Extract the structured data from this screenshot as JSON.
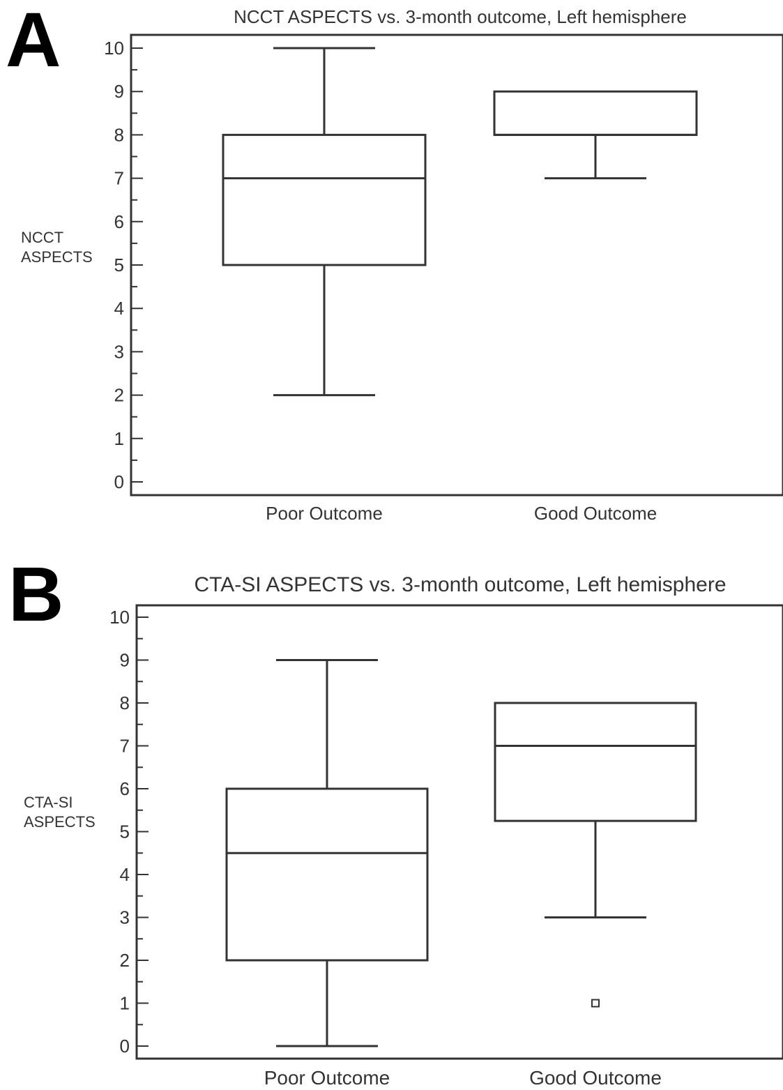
{
  "chart_data": [
    {
      "panel_label": "A",
      "type": "box",
      "title": "NCCT ASPECTS vs. 3-month outcome, Left hemisphere",
      "ylabel": [
        "NCCT",
        "ASPECTS"
      ],
      "xlabel": "",
      "ylim": [
        0,
        10
      ],
      "yticks": [
        "0",
        "1",
        "2",
        "3",
        "4",
        "5",
        "6",
        "7",
        "8",
        "9",
        "10"
      ],
      "categories": [
        "Poor Outcome",
        "Good Outcome"
      ],
      "boxes": [
        {
          "whisker_low": 2,
          "q1": 5,
          "median": 7,
          "q3": 8,
          "whisker_high": 10,
          "outliers": []
        },
        {
          "whisker_low": 7,
          "q1": 8,
          "median": 8,
          "q3": 9,
          "whisker_high": 9,
          "outliers": []
        }
      ],
      "grid": false,
      "legend": false
    },
    {
      "panel_label": "B",
      "type": "box",
      "title": "CTA-SI ASPECTS vs. 3-month outcome, Left hemisphere",
      "ylabel": [
        "CTA-SI",
        "ASPECTS"
      ],
      "xlabel": "",
      "ylim": [
        0,
        10
      ],
      "yticks": [
        "0",
        "1",
        "2",
        "3",
        "4",
        "5",
        "6",
        "7",
        "8",
        "9",
        "10"
      ],
      "categories": [
        "Poor Outcome",
        "Good Outcome"
      ],
      "boxes": [
        {
          "whisker_low": 0,
          "q1": 2,
          "median": 4.5,
          "q3": 6,
          "whisker_high": 9,
          "outliers": []
        },
        {
          "whisker_low": 3,
          "q1": 5.25,
          "median": 7,
          "q3": 8,
          "whisker_high": 8,
          "outliers": [
            1
          ]
        }
      ],
      "grid": false,
      "legend": false
    }
  ]
}
